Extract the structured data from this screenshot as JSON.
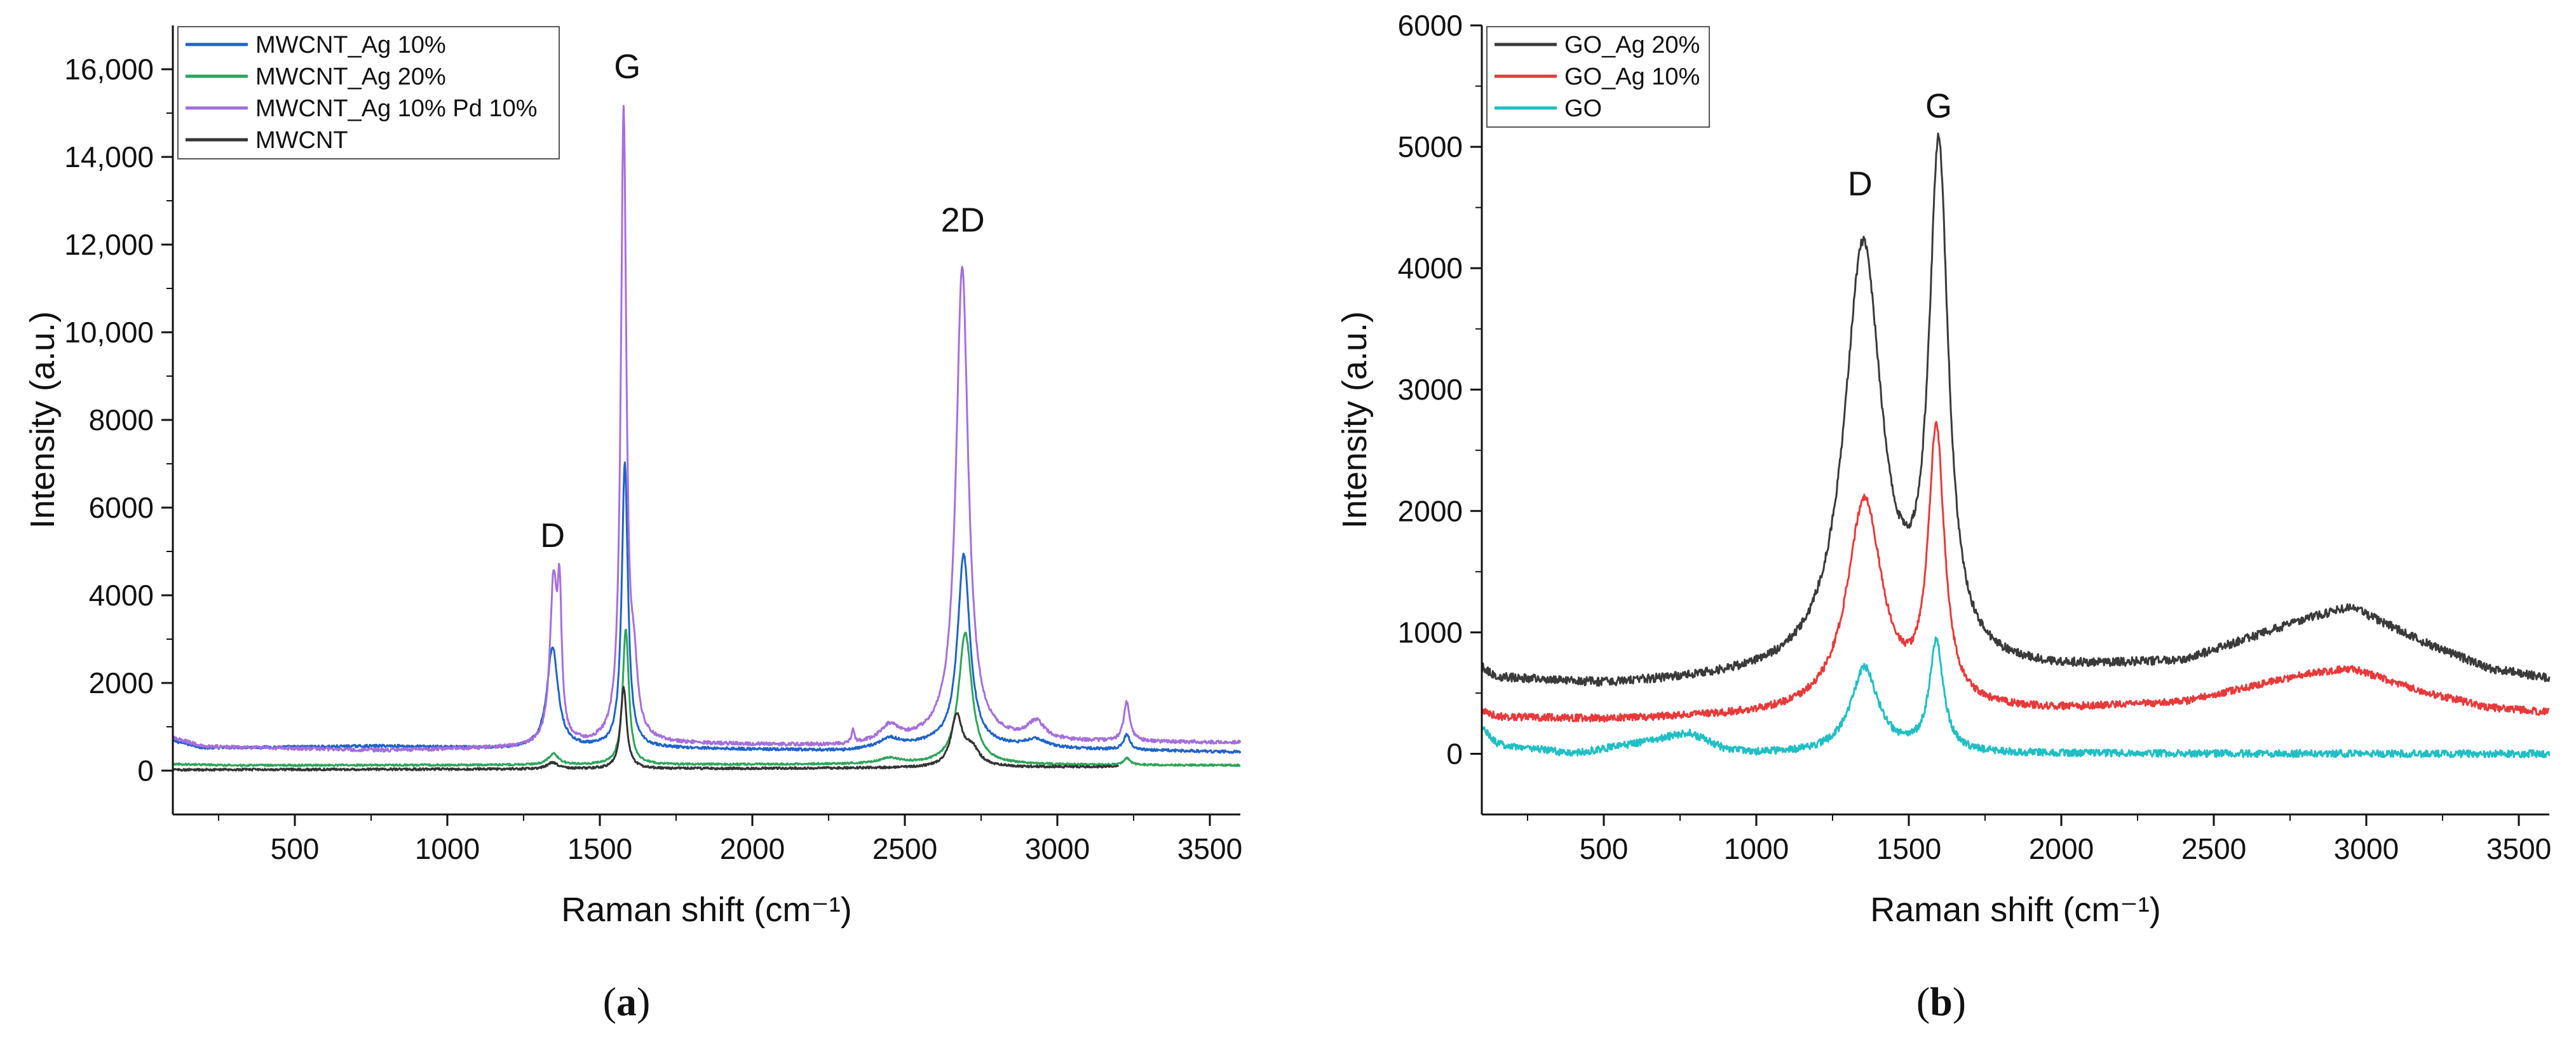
{
  "chart_data": [
    {
      "type": "line",
      "panel_label": "(a)",
      "xlabel": "Raman shift (cm⁻¹)",
      "ylabel": "Intensity (a.u.)",
      "xlim": [
        100,
        3600
      ],
      "ylim": [
        -1000,
        17000
      ],
      "x_ticks": [
        {
          "value": 500,
          "label": "500"
        },
        {
          "value": 1000,
          "label": "1000"
        },
        {
          "value": 1500,
          "label": "1500"
        },
        {
          "value": 2000,
          "label": "2000"
        },
        {
          "value": 2500,
          "label": "2500"
        },
        {
          "value": 3000,
          "label": "3000"
        },
        {
          "value": 3500,
          "label": "3500"
        }
      ],
      "y_ticks": [
        {
          "value": 0,
          "label": "0"
        },
        {
          "value": 2000,
          "label": "2000"
        },
        {
          "value": 4000,
          "label": "4000"
        },
        {
          "value": 6000,
          "label": "6000"
        },
        {
          "value": 8000,
          "label": "8000"
        },
        {
          "value": 10000,
          "label": "10,000"
        },
        {
          "value": 12000,
          "label": "12,000"
        },
        {
          "value": 14000,
          "label": "14,000"
        },
        {
          "value": 16000,
          "label": "16,000"
        }
      ],
      "legend_position": "top-left",
      "annotations": [
        {
          "text": "D",
          "x": 1345,
          "y": 5100
        },
        {
          "text": "G",
          "x": 1590,
          "y": 15800
        },
        {
          "text": "2D",
          "x": 2690,
          "y": 12300
        }
      ],
      "series": [
        {
          "name": "MWCNT_Ag 10%",
          "color": "#1f63c9",
          "baseline": [
            [
              100,
              680
            ],
            [
              200,
              520
            ],
            [
              800,
              560
            ],
            [
              1200,
              500
            ],
            [
              1600,
              520
            ],
            [
              2300,
              450
            ],
            [
              2600,
              600
            ],
            [
              3000,
              500
            ],
            [
              3600,
              420
            ]
          ],
          "peaks": [
            [
              1345,
              2300,
              22
            ],
            [
              1582,
              6500,
              12
            ],
            [
              2450,
              200,
              40
            ],
            [
              2693,
              4350,
              24
            ],
            [
              2930,
              180,
              40
            ],
            [
              3228,
              350,
              12
            ]
          ],
          "noise": 30
        },
        {
          "name": "MWCNT_Ag 20%",
          "color": "#2ca55a",
          "baseline": [
            [
              100,
              150
            ],
            [
              300,
              120
            ],
            [
              1500,
              130
            ],
            [
              2500,
              150
            ],
            [
              3000,
              130
            ],
            [
              3600,
              120
            ]
          ],
          "peaks": [
            [
              1348,
              250,
              20
            ],
            [
              1585,
              3100,
              12
            ],
            [
              2450,
              120,
              40
            ],
            [
              2698,
              3000,
              26
            ],
            [
              3228,
              150,
              12
            ]
          ],
          "noise": 20
        },
        {
          "name": "MWCNT_Ag 10% Pd 10%",
          "color": "#a56fdb",
          "baseline": [
            [
              100,
              750
            ],
            [
              200,
              550
            ],
            [
              800,
              460
            ],
            [
              1200,
              520
            ],
            [
              1600,
              620
            ],
            [
              2300,
              560
            ],
            [
              2600,
              700
            ],
            [
              3000,
              650
            ],
            [
              3600,
              640
            ]
          ],
          "peaks": [
            [
              1348,
              3600,
              14
            ],
            [
              1368,
              2900,
              8
            ],
            [
              1578,
              14300,
              11
            ],
            [
              1612,
              1300,
              14
            ],
            [
              2330,
              300,
              5
            ],
            [
              2450,
              350,
              35
            ],
            [
              2688,
              10800,
              24
            ],
            [
              2930,
              400,
              35
            ],
            [
              3228,
              900,
              12
            ]
          ],
          "noise": 40
        },
        {
          "name": "MWCNT",
          "color": "#333333",
          "baseline": [
            [
              100,
              20
            ],
            [
              1500,
              40
            ],
            [
              2500,
              60
            ],
            [
              3200,
              90
            ]
          ],
          "peaks": [
            [
              1345,
              150,
              20
            ],
            [
              1578,
              1850,
              12
            ],
            [
              2670,
              1150,
              22
            ],
            [
              2720,
              400,
              30
            ]
          ],
          "noise": 25,
          "x_max": 3200
        }
      ]
    },
    {
      "type": "line",
      "panel_label": "(b)",
      "xlabel": "Raman shift (cm⁻¹)",
      "ylabel": "Intensity (a.u.)",
      "xlim": [
        100,
        3600
      ],
      "ylim": [
        -500,
        6000
      ],
      "x_ticks": [
        {
          "value": 500,
          "label": "500"
        },
        {
          "value": 1000,
          "label": "1000"
        },
        {
          "value": 1500,
          "label": "1500"
        },
        {
          "value": 2000,
          "label": "2000"
        },
        {
          "value": 2500,
          "label": "2500"
        },
        {
          "value": 3000,
          "label": "3000"
        },
        {
          "value": 3500,
          "label": "3500"
        }
      ],
      "y_ticks": [
        {
          "value": 0,
          "label": "0"
        },
        {
          "value": 1000,
          "label": "1000"
        },
        {
          "value": 2000,
          "label": "2000"
        },
        {
          "value": 3000,
          "label": "3000"
        },
        {
          "value": 4000,
          "label": "4000"
        },
        {
          "value": 5000,
          "label": "5000"
        },
        {
          "value": 6000,
          "label": "6000"
        }
      ],
      "legend_position": "top-left",
      "annotations": [
        {
          "text": "D",
          "x": 1340,
          "y": 4600
        },
        {
          "text": "G",
          "x": 1598,
          "y": 5240
        }
      ],
      "series": [
        {
          "name": "GO_Ag 20%",
          "color": "#3a3a3a",
          "baseline": [
            [
              100,
              700
            ],
            [
              150,
              620
            ],
            [
              500,
              560
            ],
            [
              900,
              600
            ],
            [
              2000,
              680
            ],
            [
              2400,
              750
            ],
            [
              2800,
              1100
            ],
            [
              2950,
              1200
            ],
            [
              3200,
              900
            ],
            [
              3400,
              700
            ],
            [
              3600,
              620
            ]
          ],
          "peaks": [
            [
              1350,
              3500,
              75
            ],
            [
              1598,
              4150,
              38
            ]
          ],
          "noise": 35
        },
        {
          "name": "GO_Ag 10%",
          "color": "#e8393a",
          "baseline": [
            [
              100,
              350
            ],
            [
              150,
              300
            ],
            [
              500,
              280
            ],
            [
              900,
              300
            ],
            [
              2000,
              360
            ],
            [
              2400,
              420
            ],
            [
              2800,
              650
            ],
            [
              2950,
              700
            ],
            [
              3200,
              500
            ],
            [
              3400,
              380
            ],
            [
              3600,
              340
            ]
          ],
          "peaks": [
            [
              1355,
              1750,
              70
            ],
            [
              1590,
              2250,
              32
            ]
          ],
          "noise": 30
        },
        {
          "name": "GO",
          "color": "#1fbfc4",
          "baseline": [
            [
              100,
              220
            ],
            [
              150,
              80
            ],
            [
              400,
              0
            ],
            [
              600,
              80
            ],
            [
              780,
              170
            ],
            [
              900,
              30
            ],
            [
              1000,
              0
            ],
            [
              3600,
              0
            ]
          ],
          "peaks": [
            [
              1355,
              700,
              55
            ],
            [
              1590,
              900,
              28
            ]
          ],
          "noise": 30
        }
      ]
    }
  ]
}
